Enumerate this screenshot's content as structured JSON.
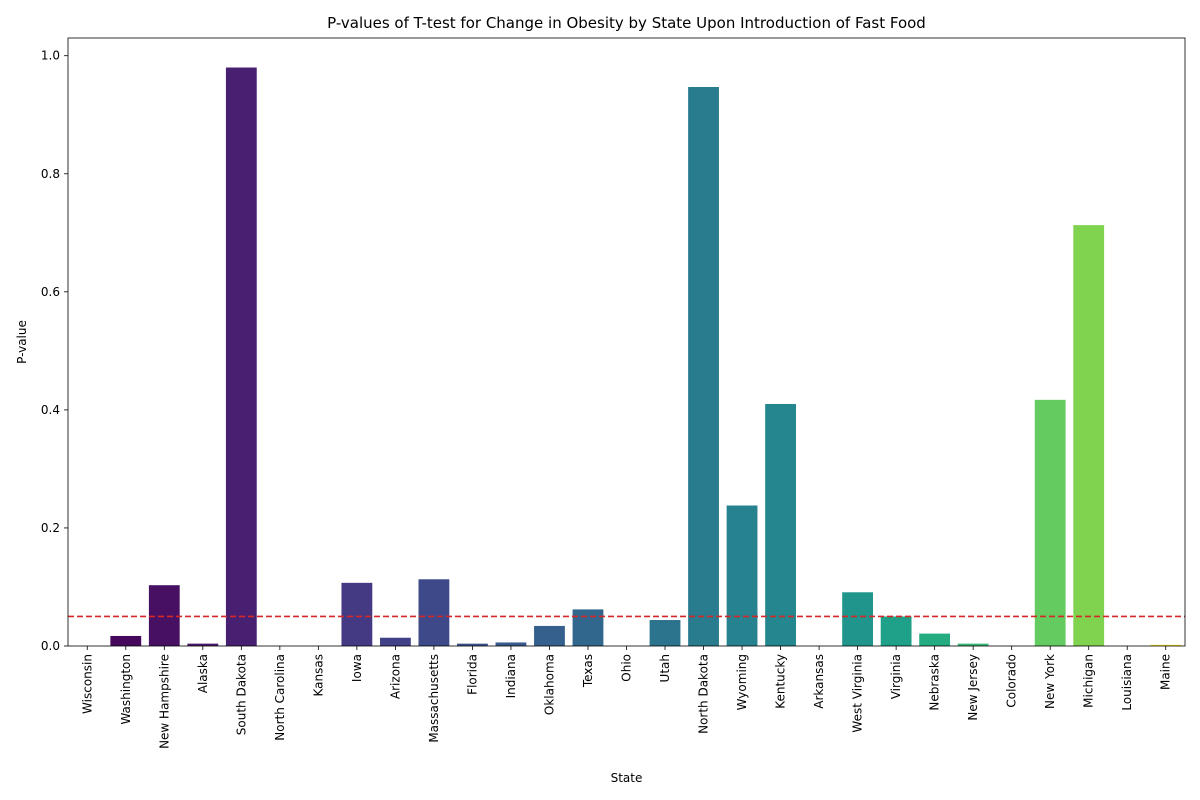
{
  "chart_data": {
    "type": "bar",
    "title": "P-values of T-test for Change in Obesity by State Upon Introduction of Fast Food",
    "xlabel": "State",
    "ylabel": "P-value",
    "ylim": [
      0,
      1.03
    ],
    "yticks": [
      0.0,
      0.2,
      0.4,
      0.6,
      0.8,
      1.0
    ],
    "ytick_labels": [
      "0.0",
      "0.2",
      "0.4",
      "0.6",
      "0.8",
      "1.0"
    ],
    "reference_line": {
      "y": 0.05,
      "color": "#d62728",
      "style": "dashed"
    },
    "grid": false,
    "legend": "none",
    "palette": "viridis",
    "categories": [
      "Wisconsin",
      "Washington",
      "New Hampshire",
      "Alaska",
      "South Dakota",
      "North Carolina",
      "Kansas",
      "Iowa",
      "Arizona",
      "Massachusetts",
      "Florida",
      "Indiana",
      "Oklahoma",
      "Texas",
      "Ohio",
      "Utah",
      "North Dakota",
      "Wyoming",
      "Kentucky",
      "Arkansas",
      "West Virginia",
      "Virginia",
      "Nebraska",
      "New Jersey",
      "Colorado",
      "New York",
      "Michigan",
      "Louisiana",
      "Maine"
    ],
    "values": [
      0.0,
      0.017,
      0.103,
      0.004,
      0.98,
      0.0,
      0.0,
      0.107,
      0.014,
      0.113,
      0.004,
      0.006,
      0.034,
      0.062,
      0.0,
      0.044,
      0.947,
      0.238,
      0.41,
      0.0,
      0.091,
      0.05,
      0.021,
      0.004,
      0.0,
      0.417,
      0.713,
      0.0,
      0.002
    ],
    "colors": [
      "#440154",
      "#46085c",
      "#471063",
      "#48186a",
      "#482071",
      "#472777",
      "#462f7c",
      "#443983",
      "#424086",
      "#3e4989",
      "#3b518b",
      "#38598c",
      "#35608d",
      "#32678d",
      "#2f6e8e",
      "#2c738e",
      "#297b8e",
      "#26828e",
      "#24868e",
      "#218e8d",
      "#1f958b",
      "#1fa088",
      "#25ab82",
      "#35b779",
      "#4ac16d",
      "#63cb5f",
      "#7fd34e",
      "#b5de2b",
      "#fde725"
    ]
  }
}
